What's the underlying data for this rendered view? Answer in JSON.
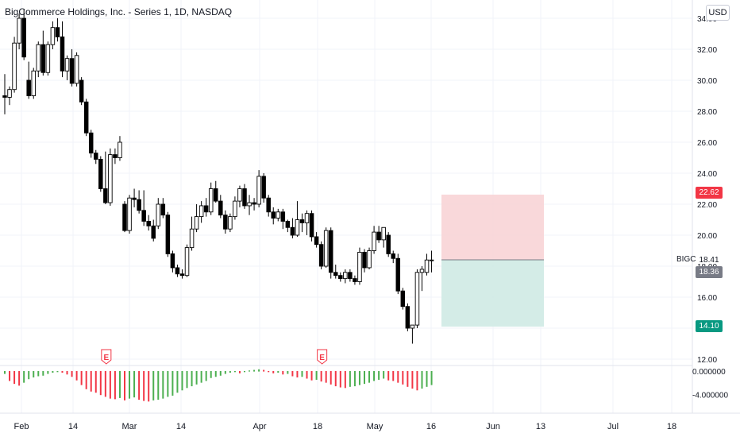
{
  "header": {
    "title": "BigCommerce Holdings, Inc. - Series 1, 1D, NASDAQ",
    "currency": "USD"
  },
  "colors": {
    "up": "#ffffff",
    "down": "#000000",
    "wick": "#000000",
    "grid": "#f0f3fa",
    "stop_zone": "#f8d1d3",
    "target_zone": "#cfeae4",
    "stop_tag": "#f23645",
    "target_tag": "#089981",
    "last_tag": "#787b86",
    "osc_pos": "#4caf50",
    "osc_neg": "#f23645",
    "earnings": "#f23645"
  },
  "price_axis": {
    "ticks": [
      "34.00",
      "32.00",
      "30.00",
      "28.00",
      "26.00",
      "24.00",
      "22.00",
      "20.00",
      "18.00",
      "16.00",
      "14.00",
      "12.00"
    ],
    "values": [
      34,
      32,
      30,
      28,
      26,
      24,
      22,
      20,
      18,
      16,
      14,
      12
    ]
  },
  "osc_axis": {
    "ticks": [
      "0.000000",
      "-4.000000"
    ],
    "values": [
      0,
      -4
    ]
  },
  "time_axis": {
    "labels": [
      "Feb",
      "14",
      "Mar",
      "14",
      "Apr",
      "18",
      "May",
      "16",
      "Jun",
      "13",
      "Jul",
      "18"
    ]
  },
  "position": {
    "symbol": "BIGC",
    "entry_label": "18.41",
    "stop_label": "22.62",
    "target_label": "14.10",
    "last_label": "18.36",
    "entry": 18.41,
    "stop": 22.62,
    "target": 14.1
  },
  "earnings_marker": "E",
  "chart_data": {
    "type": "candlestick",
    "title": "BigCommerce Holdings, Inc. - Series 1, 1D, NASDAQ",
    "ylim": [
      11.5,
      35.2
    ],
    "ohlc": [
      [
        29.0,
        30.4,
        27.8,
        28.9
      ],
      [
        28.9,
        29.6,
        28.4,
        29.4
      ],
      [
        29.4,
        32.8,
        29.2,
        32.4
      ],
      [
        32.4,
        34.3,
        32.0,
        34.0
      ],
      [
        34.0,
        34.6,
        31.3,
        31.5
      ],
      [
        30.0,
        31.2,
        28.8,
        29.0
      ],
      [
        29.0,
        30.8,
        28.8,
        30.6
      ],
      [
        30.6,
        32.5,
        30.2,
        32.3
      ],
      [
        32.3,
        33.2,
        30.3,
        30.5
      ],
      [
        30.5,
        32.5,
        30.3,
        32.3
      ],
      [
        32.3,
        33.8,
        32.0,
        33.4
      ],
      [
        33.4,
        34.0,
        32.5,
        32.8
      ],
      [
        32.8,
        33.8,
        30.2,
        30.6
      ],
      [
        30.6,
        31.6,
        30.0,
        31.4
      ],
      [
        31.4,
        32.0,
        29.6,
        29.8
      ],
      [
        29.8,
        31.8,
        29.6,
        31.6
      ],
      [
        30.0,
        30.2,
        28.4,
        28.6
      ],
      [
        28.6,
        28.8,
        26.4,
        26.6
      ],
      [
        26.6,
        26.8,
        25.0,
        25.3
      ],
      [
        25.3,
        25.5,
        24.6,
        24.9
      ],
      [
        24.9,
        25.1,
        22.8,
        23.0
      ],
      [
        23.0,
        25.4,
        22.0,
        22.1
      ],
      [
        22.1,
        25.6,
        21.9,
        25.2
      ],
      [
        25.2,
        25.6,
        24.6,
        25.0
      ],
      [
        25.0,
        26.4,
        24.8,
        26.0
      ],
      [
        22.0,
        22.2,
        20.2,
        20.3
      ],
      [
        20.3,
        22.6,
        20.1,
        22.4
      ],
      [
        22.4,
        23.0,
        21.8,
        22.3
      ],
      [
        22.3,
        22.9,
        21.4,
        21.6
      ],
      [
        21.6,
        22.9,
        20.6,
        20.9
      ],
      [
        20.9,
        21.3,
        20.3,
        20.6
      ],
      [
        20.6,
        21.0,
        19.6,
        19.8
      ],
      [
        20.6,
        22.4,
        20.4,
        22.0
      ],
      [
        22.0,
        22.4,
        21.1,
        21.3
      ],
      [
        21.3,
        21.5,
        18.6,
        18.8
      ],
      [
        18.8,
        19.0,
        17.6,
        17.9
      ],
      [
        17.9,
        18.1,
        17.3,
        17.5
      ],
      [
        17.5,
        17.8,
        17.2,
        17.4
      ],
      [
        17.4,
        19.4,
        17.3,
        19.2
      ],
      [
        19.2,
        21.2,
        19.0,
        20.4
      ],
      [
        20.4,
        22.0,
        20.2,
        21.2
      ],
      [
        21.2,
        22.2,
        20.8,
        21.9
      ],
      [
        21.9,
        22.4,
        21.2,
        21.5
      ],
      [
        21.5,
        23.4,
        21.3,
        23.0
      ],
      [
        23.0,
        23.5,
        22.1,
        22.2
      ],
      [
        22.2,
        22.6,
        21.1,
        21.3
      ],
      [
        21.3,
        21.6,
        20.1,
        20.4
      ],
      [
        20.4,
        21.4,
        20.2,
        21.2
      ],
      [
        21.2,
        22.5,
        21.0,
        22.2
      ],
      [
        22.2,
        23.2,
        21.8,
        23.0
      ],
      [
        23.0,
        23.3,
        21.7,
        21.9
      ],
      [
        21.9,
        22.6,
        21.3,
        22.1
      ],
      [
        22.1,
        22.4,
        21.6,
        22.0
      ],
      [
        22.0,
        24.2,
        21.8,
        23.8
      ],
      [
        23.8,
        24.0,
        22.1,
        22.4
      ],
      [
        22.4,
        22.6,
        21.2,
        21.5
      ],
      [
        21.5,
        21.8,
        20.7,
        21.1
      ],
      [
        21.1,
        21.7,
        20.9,
        21.5
      ],
      [
        21.5,
        21.7,
        20.4,
        20.9
      ],
      [
        20.9,
        21.0,
        20.2,
        20.5
      ],
      [
        20.5,
        21.1,
        19.8,
        20.0
      ],
      [
        20.0,
        22.2,
        19.9,
        21.0
      ],
      [
        21.0,
        21.4,
        20.2,
        20.8
      ],
      [
        20.8,
        21.6,
        20.0,
        21.4
      ],
      [
        21.4,
        21.6,
        19.6,
        19.9
      ],
      [
        19.9,
        20.2,
        19.2,
        19.4
      ],
      [
        19.4,
        19.6,
        17.8,
        18.0
      ],
      [
        18.0,
        20.5,
        17.9,
        20.3
      ],
      [
        20.3,
        20.5,
        17.2,
        17.6
      ],
      [
        17.6,
        18.1,
        17.2,
        17.4
      ],
      [
        17.4,
        17.6,
        17.0,
        17.2
      ],
      [
        17.2,
        17.8,
        16.9,
        17.6
      ],
      [
        17.6,
        17.8,
        17.0,
        17.2
      ],
      [
        17.2,
        17.4,
        16.8,
        17.0
      ],
      [
        17.0,
        19.2,
        16.8,
        18.9
      ],
      [
        18.9,
        19.1,
        17.6,
        17.9
      ],
      [
        17.9,
        19.2,
        17.8,
        19.0
      ],
      [
        19.0,
        20.6,
        18.8,
        20.2
      ],
      [
        20.2,
        20.6,
        19.5,
        19.7
      ],
      [
        19.7,
        20.5,
        19.2,
        20.5
      ],
      [
        20.0,
        20.2,
        18.6,
        18.8
      ],
      [
        18.8,
        19.0,
        18.2,
        18.5
      ],
      [
        18.5,
        18.8,
        16.2,
        16.4
      ],
      [
        16.4,
        16.6,
        15.2,
        15.4
      ],
      [
        15.4,
        15.6,
        13.8,
        14.0
      ],
      [
        14.0,
        14.2,
        13.0,
        14.2
      ],
      [
        14.2,
        17.8,
        14.0,
        17.6
      ],
      [
        17.6,
        18.0,
        16.4,
        17.8
      ],
      [
        17.6,
        18.8,
        17.4,
        18.4
      ],
      [
        18.4,
        19.0,
        17.6,
        18.4
      ]
    ],
    "osc": [
      -0.4,
      -1.6,
      -2.1,
      -2.4,
      -1.9,
      -1.3,
      -1.0,
      -0.8,
      -0.7,
      -0.4,
      -0.2,
      -0.1,
      -0.2,
      -0.5,
      -0.9,
      -1.5,
      -2.3,
      -3.0,
      -3.4,
      -3.6,
      -4.0,
      -4.3,
      -4.6,
      -4.7,
      -4.5,
      -4.9,
      -4.6,
      -4.4,
      -4.8,
      -5.0,
      -5.1,
      -4.9,
      -4.8,
      -4.6,
      -4.3,
      -4.1,
      -3.6,
      -3.2,
      -2.8,
      -2.5,
      -2.2,
      -1.9,
      -1.6,
      -1.1,
      -0.9,
      -0.7,
      -0.4,
      -0.2,
      -0.1,
      -0.3,
      -0.1,
      0.1,
      0.2,
      0.3,
      0.2,
      -0.1,
      -0.3,
      -0.2,
      -0.5,
      -0.4,
      -0.8,
      -1.0,
      -0.9,
      -1.2,
      -1.5,
      -1.4,
      -1.7,
      -1.9,
      -2.2,
      -2.5,
      -2.7,
      -2.8,
      -2.6,
      -2.5,
      -2.3,
      -2.1,
      -1.9,
      -1.6,
      -1.4,
      -1.2,
      -1.5,
      -1.6,
      -1.9,
      -2.2,
      -2.6,
      -2.9,
      -3.2,
      -2.9,
      -2.6,
      -2.3
    ],
    "earnings_bars": [
      21,
      66
    ]
  }
}
